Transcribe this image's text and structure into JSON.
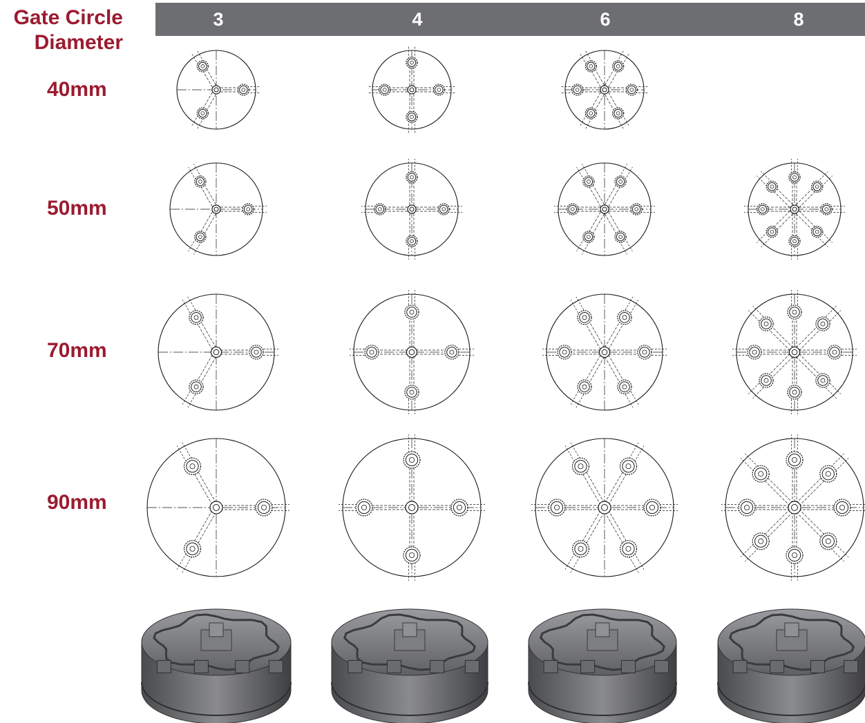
{
  "table": {
    "row_axis_title_line1": "Gate Circle",
    "row_axis_title_line2": "Diameter",
    "columns": [
      "3",
      "4",
      "6",
      "8"
    ],
    "rows": [
      "40mm",
      "50mm",
      "70mm",
      "90mm"
    ],
    "available": [
      [
        true,
        true,
        true,
        false
      ],
      [
        true,
        true,
        true,
        true
      ],
      [
        true,
        true,
        true,
        true
      ],
      [
        true,
        true,
        true,
        true
      ]
    ],
    "bottom_row": "3d-manifold-renderings"
  },
  "colors": {
    "header_bg": "#6d6e71",
    "header_text": "#ffffff",
    "label_red": "#9b1b30",
    "line": "#1a1a1a",
    "manifold": "#5f6063"
  }
}
